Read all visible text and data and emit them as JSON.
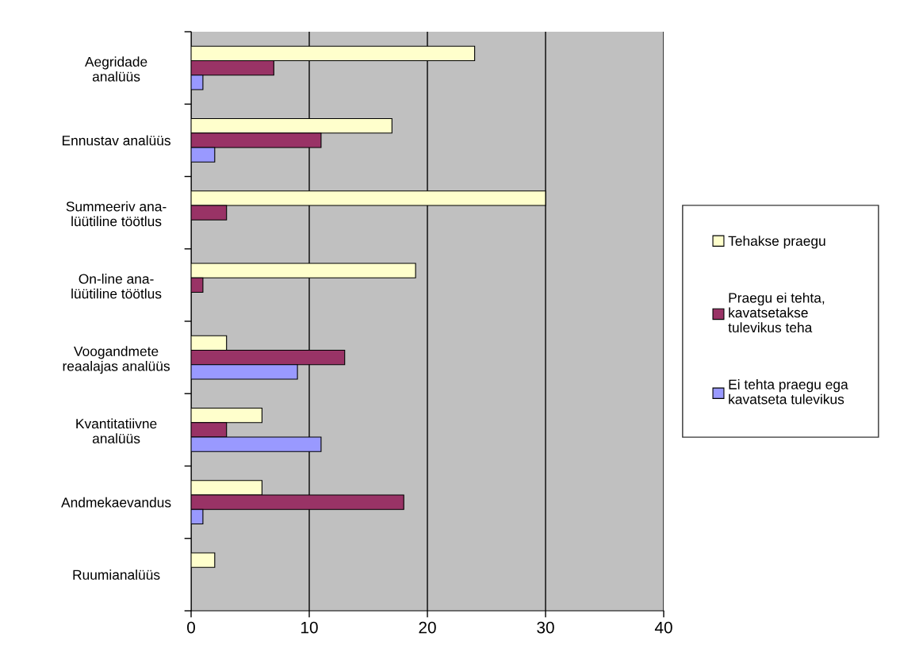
{
  "chart_data": {
    "type": "bar",
    "orientation": "horizontal",
    "categories": [
      "Aegridade\nanalüüs",
      "Ennustav analüüs",
      "Summeeriv ana-\nlüütiline töötlus",
      "On-line ana-\nlüütiline töötlus",
      "Voogandmete\nreaalajas analüüs",
      "Kvantitatiivne\nanalüüs",
      "Andmekaevandus",
      "Ruumianalüüs"
    ],
    "series": [
      {
        "name": "Tehakse praegu",
        "color": "#ffffcc",
        "values": [
          24,
          17,
          30,
          19,
          3,
          6,
          6,
          2
        ]
      },
      {
        "name": "Praegu ei tehta,\nkavatsetakse\ntulevikus teha",
        "color": "#993366",
        "values": [
          7,
          11,
          3,
          1,
          13,
          3,
          18,
          null
        ]
      },
      {
        "name": "Ei tehta praegu ega\nkavatseta tulevikus",
        "color": "#9999ff",
        "values": [
          1,
          2,
          null,
          null,
          9,
          11,
          1,
          null
        ]
      }
    ],
    "xlim": [
      0,
      40
    ],
    "xticks": [
      0,
      10,
      20,
      30,
      40
    ],
    "grid": "x",
    "legend": "right"
  }
}
